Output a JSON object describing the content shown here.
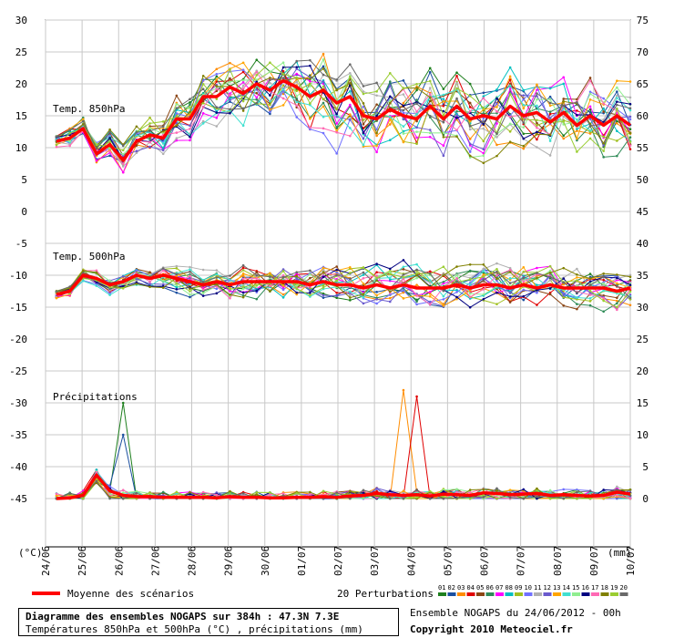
{
  "chart_data": {
    "type": "line",
    "left_axis_label": "(°C)",
    "right_axis_label": "(mm)",
    "left_ticks": [
      30,
      25,
      20,
      15,
      10,
      5,
      0,
      -5,
      -10,
      -15,
      -20,
      -25,
      -30,
      -35,
      -40,
      -45
    ],
    "right_ticks": [
      75,
      70,
      65,
      60,
      55,
      50,
      45,
      40,
      35,
      30,
      25,
      20,
      15,
      10,
      5,
      0
    ],
    "x_ticks": [
      "24/06",
      "25/06",
      "26/06",
      "27/06",
      "28/06",
      "29/06",
      "30/06",
      "01/07",
      "02/07",
      "03/07",
      "04/07",
      "05/07",
      "06/07",
      "07/07",
      "08/07",
      "09/07",
      "10/07"
    ],
    "panel_labels": [
      "Temp. 850hPa",
      "Temp. 500hPa",
      "Précipitations"
    ],
    "t850_mean": [
      11,
      11.5,
      13,
      9,
      10.5,
      8,
      11,
      12,
      11.5,
      14.5,
      14.5,
      18,
      18,
      19.5,
      18.5,
      20,
      19,
      20.5,
      19.5,
      18,
      19,
      17,
      18,
      15,
      14.5,
      16,
      15,
      14.5,
      16.5,
      14.5,
      16.5,
      14.5,
      15,
      14.5,
      16.5,
      15,
      15.5,
      14,
      15.5,
      13.5,
      15,
      13.5,
      15,
      13.5
    ],
    "t500_mean": [
      -13,
      -12.5,
      -10,
      -10.5,
      -11.5,
      -11,
      -10,
      -10.5,
      -10,
      -10.5,
      -11,
      -11.5,
      -11,
      -11.5,
      -11,
      -11,
      -11,
      -11,
      -11,
      -11.5,
      -11,
      -11.5,
      -11.5,
      -12,
      -11.5,
      -12,
      -11.5,
      -12,
      -12,
      -12,
      -11.5,
      -12,
      -11.5,
      -11.5,
      -12,
      -11.5,
      -12,
      -11.5,
      -12,
      -12,
      -12,
      -12,
      -12.5,
      -12
    ],
    "precip_mean": [
      0,
      0.1,
      0.5,
      3.7,
      1.2,
      0.5,
      0.3,
      0.3,
      0.2,
      0.2,
      0.2,
      0.2,
      0.1,
      0.3,
      0.2,
      0.2,
      0.1,
      0.1,
      0.2,
      0.2,
      0.3,
      0.2,
      0.4,
      0.5,
      0.8,
      0.6,
      0.5,
      0.6,
      0.4,
      0.7,
      0.6,
      0.5,
      0.9,
      0.8,
      0.6,
      0.7,
      0.8,
      0.5,
      0.6,
      0.5,
      0.4,
      0.5,
      1.0,
      0.7
    ],
    "member_peaks": [
      {
        "member": "01",
        "panel": "precip",
        "index": 5,
        "value": 15
      },
      {
        "member": "02",
        "panel": "precip",
        "index": 5,
        "value": 10
      },
      {
        "member": "03",
        "panel": "precip",
        "index": 26,
        "value": 17
      },
      {
        "member": "04",
        "panel": "precip",
        "index": 27,
        "value": 16
      }
    ],
    "member_colors": [
      "#1e7f1e",
      "#1a4fa0",
      "#ff8c00",
      "#e00000",
      "#8b4513",
      "#2e8b57",
      "#ff00ff",
      "#00c0c0",
      "#a0c020",
      "#7070ff",
      "#b0b0b0",
      "#6a5acd",
      "#ffa500",
      "#40e0d0",
      "#90ee90",
      "#000080",
      "#ff69b4",
      "#808000",
      "#9acd32",
      "#696969"
    ],
    "mean_color": "#ff0000"
  },
  "legend": {
    "mean_label": "Moyenne des scénarios",
    "perturbations_label": "20 Perturbations",
    "member_numbers": [
      "01",
      "02",
      "03",
      "04",
      "05",
      "06",
      "07",
      "08",
      "09",
      "10",
      "11",
      "12",
      "13",
      "14",
      "15",
      "16",
      "17",
      "18",
      "19",
      "20"
    ]
  },
  "footer": {
    "title": "Diagramme des ensembles NOGAPS sur 384h : 47.3N 7.3E",
    "subtitle": "Températures 850hPa et 500hPa (°C) , précipitations (mm)",
    "run": "Ensemble NOGAPS du 24/06/2012 - 00h",
    "copyright": "Copyright 2010 Meteociel.fr"
  }
}
